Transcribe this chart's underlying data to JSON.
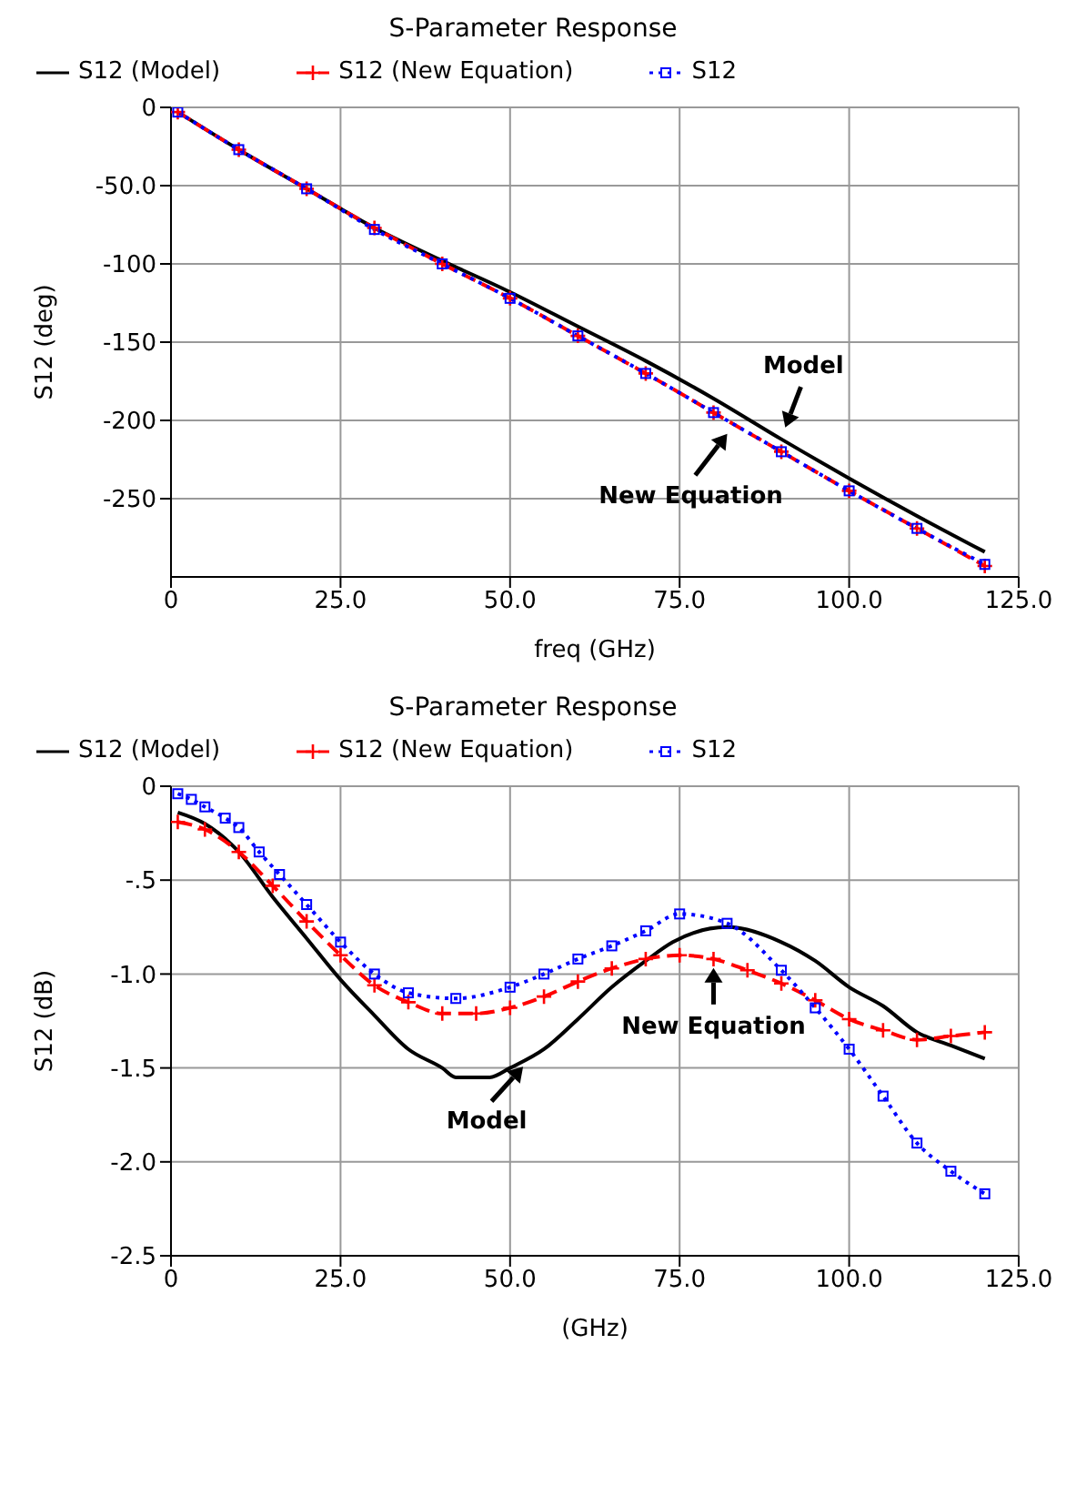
{
  "chart_data": [
    {
      "type": "line",
      "title": "S-Parameter Response",
      "xlabel": "freq (GHz)",
      "ylabel": "S12 (deg)",
      "legend": "top",
      "grid": true,
      "xlim": [
        0,
        125
      ],
      "xticks": [
        0,
        {
          "value": 25,
          "label": "25.0"
        },
        {
          "value": 50,
          "label": "50.0"
        },
        {
          "value": 75,
          "label": "75.0"
        },
        {
          "value": 100,
          "label": "100.0"
        },
        {
          "value": 125,
          "label": "125.0"
        }
      ],
      "ylim": [
        -300,
        0
      ],
      "yticks": [
        0,
        {
          "value": -50,
          "label": "-50.0"
        },
        -100,
        -150,
        -200,
        -250
      ],
      "series": [
        {
          "name": "S12 (Model)",
          "color": "#000000",
          "marker": "none",
          "line_style": "solid",
          "x": [
            1,
            10,
            20,
            30,
            40,
            50,
            60,
            70,
            80,
            90,
            100,
            110,
            120
          ],
          "values": [
            -3,
            -27,
            -52,
            -77,
            -98,
            -118,
            -140,
            -162,
            -186,
            -212,
            -237,
            -261,
            -284
          ]
        },
        {
          "name": "S12 (New Equation)",
          "color": "#ff0000",
          "marker": "cross",
          "line_style": "dashed",
          "x": [
            1,
            10,
            20,
            30,
            40,
            50,
            60,
            70,
            80,
            90,
            100,
            110,
            120
          ],
          "values": [
            -3,
            -27,
            -52,
            -77,
            -100,
            -122,
            -146,
            -170,
            -195,
            -220,
            -245,
            -269,
            -293
          ]
        },
        {
          "name": "S12",
          "color": "#0000ff",
          "marker": "square",
          "line_style": "dotted",
          "x": [
            1,
            10,
            20,
            30,
            40,
            50,
            60,
            70,
            80,
            90,
            100,
            110,
            120
          ],
          "values": [
            -3,
            -27,
            -52,
            -78,
            -100,
            -122,
            -146,
            -170,
            -195,
            -220,
            -245,
            -269,
            -292
          ]
        }
      ],
      "annotations": [
        {
          "text": "Model",
          "x": 90,
          "y": -211
        },
        {
          "text": "New Equation",
          "x": 83,
          "y": -203
        }
      ]
    },
    {
      "type": "line",
      "title": "S-Parameter Response",
      "xlabel": "(GHz)",
      "ylabel": "S12 (dB)",
      "legend": "top",
      "grid": true,
      "xlim": [
        0,
        125
      ],
      "xticks": [
        0,
        {
          "value": 25,
          "label": "25.0"
        },
        {
          "value": 50,
          "label": "50.0"
        },
        {
          "value": 75,
          "label": "75.0"
        },
        {
          "value": 100,
          "label": "100.0"
        },
        {
          "value": 125,
          "label": "125.0"
        }
      ],
      "ylim": [
        -2.5,
        0
      ],
      "yticks": [
        0,
        {
          "value": -0.5,
          "label": "-.5"
        },
        {
          "value": -1,
          "label": "-1.0"
        },
        {
          "value": -1.5,
          "label": "-1.5"
        },
        {
          "value": -2,
          "label": "-2.0"
        },
        {
          "value": -2.5,
          "label": "-2.5"
        }
      ],
      "series": [
        {
          "name": "S12 (Model)",
          "color": "#000000",
          "marker": "none",
          "line_style": "solid",
          "x": [
            1,
            5,
            10,
            15,
            20,
            25,
            30,
            35,
            40,
            42,
            47,
            50,
            55,
            60,
            65,
            70,
            74,
            82,
            90,
            95,
            100,
            105,
            110,
            115,
            120
          ],
          "values": [
            -0.14,
            -0.2,
            -0.35,
            -0.59,
            -0.81,
            -1.03,
            -1.22,
            -1.4,
            -1.5,
            -1.55,
            -1.55,
            -1.5,
            -1.4,
            -1.24,
            -1.07,
            -0.93,
            -0.83,
            -0.75,
            -0.83,
            -0.93,
            -1.07,
            -1.17,
            -1.31,
            -1.38,
            -1.45
          ]
        },
        {
          "name": "S12 (New Equation)",
          "color": "#ff0000",
          "marker": "cross",
          "line_style": "dashed",
          "x": [
            1,
            5,
            10,
            15,
            20,
            25,
            30,
            35,
            40,
            45,
            50,
            55,
            60,
            65,
            70,
            75,
            80,
            85,
            90,
            95,
            100,
            105,
            110,
            115,
            120
          ],
          "values": [
            -0.19,
            -0.23,
            -0.35,
            -0.53,
            -0.72,
            -0.9,
            -1.06,
            -1.15,
            -1.21,
            -1.21,
            -1.18,
            -1.12,
            -1.04,
            -0.97,
            -0.92,
            -0.9,
            -0.92,
            -0.98,
            -1.05,
            -1.14,
            -1.24,
            -1.3,
            -1.35,
            -1.33,
            -1.31
          ]
        },
        {
          "name": "S12",
          "color": "#0000ff",
          "marker": "square",
          "line_style": "dotted",
          "x": [
            1,
            3,
            5,
            8,
            10,
            13,
            16,
            20,
            25,
            30,
            35,
            42,
            50,
            55,
            60,
            65,
            70,
            75,
            82,
            90,
            95,
            100,
            105,
            110,
            115,
            120
          ],
          "values": [
            -0.04,
            -0.07,
            -0.11,
            -0.17,
            -0.22,
            -0.35,
            -0.47,
            -0.63,
            -0.83,
            -1.0,
            -1.1,
            -1.13,
            -1.07,
            -1.0,
            -0.92,
            -0.85,
            -0.77,
            -0.68,
            -0.73,
            -0.98,
            -1.18,
            -1.4,
            -1.65,
            -1.9,
            -2.05,
            -2.17
          ]
        }
      ],
      "annotations": [
        {
          "text": "Model",
          "x": 53,
          "y": -1.45
        },
        {
          "text": "New Equation",
          "x": 80,
          "y": -0.91
        }
      ]
    }
  ]
}
